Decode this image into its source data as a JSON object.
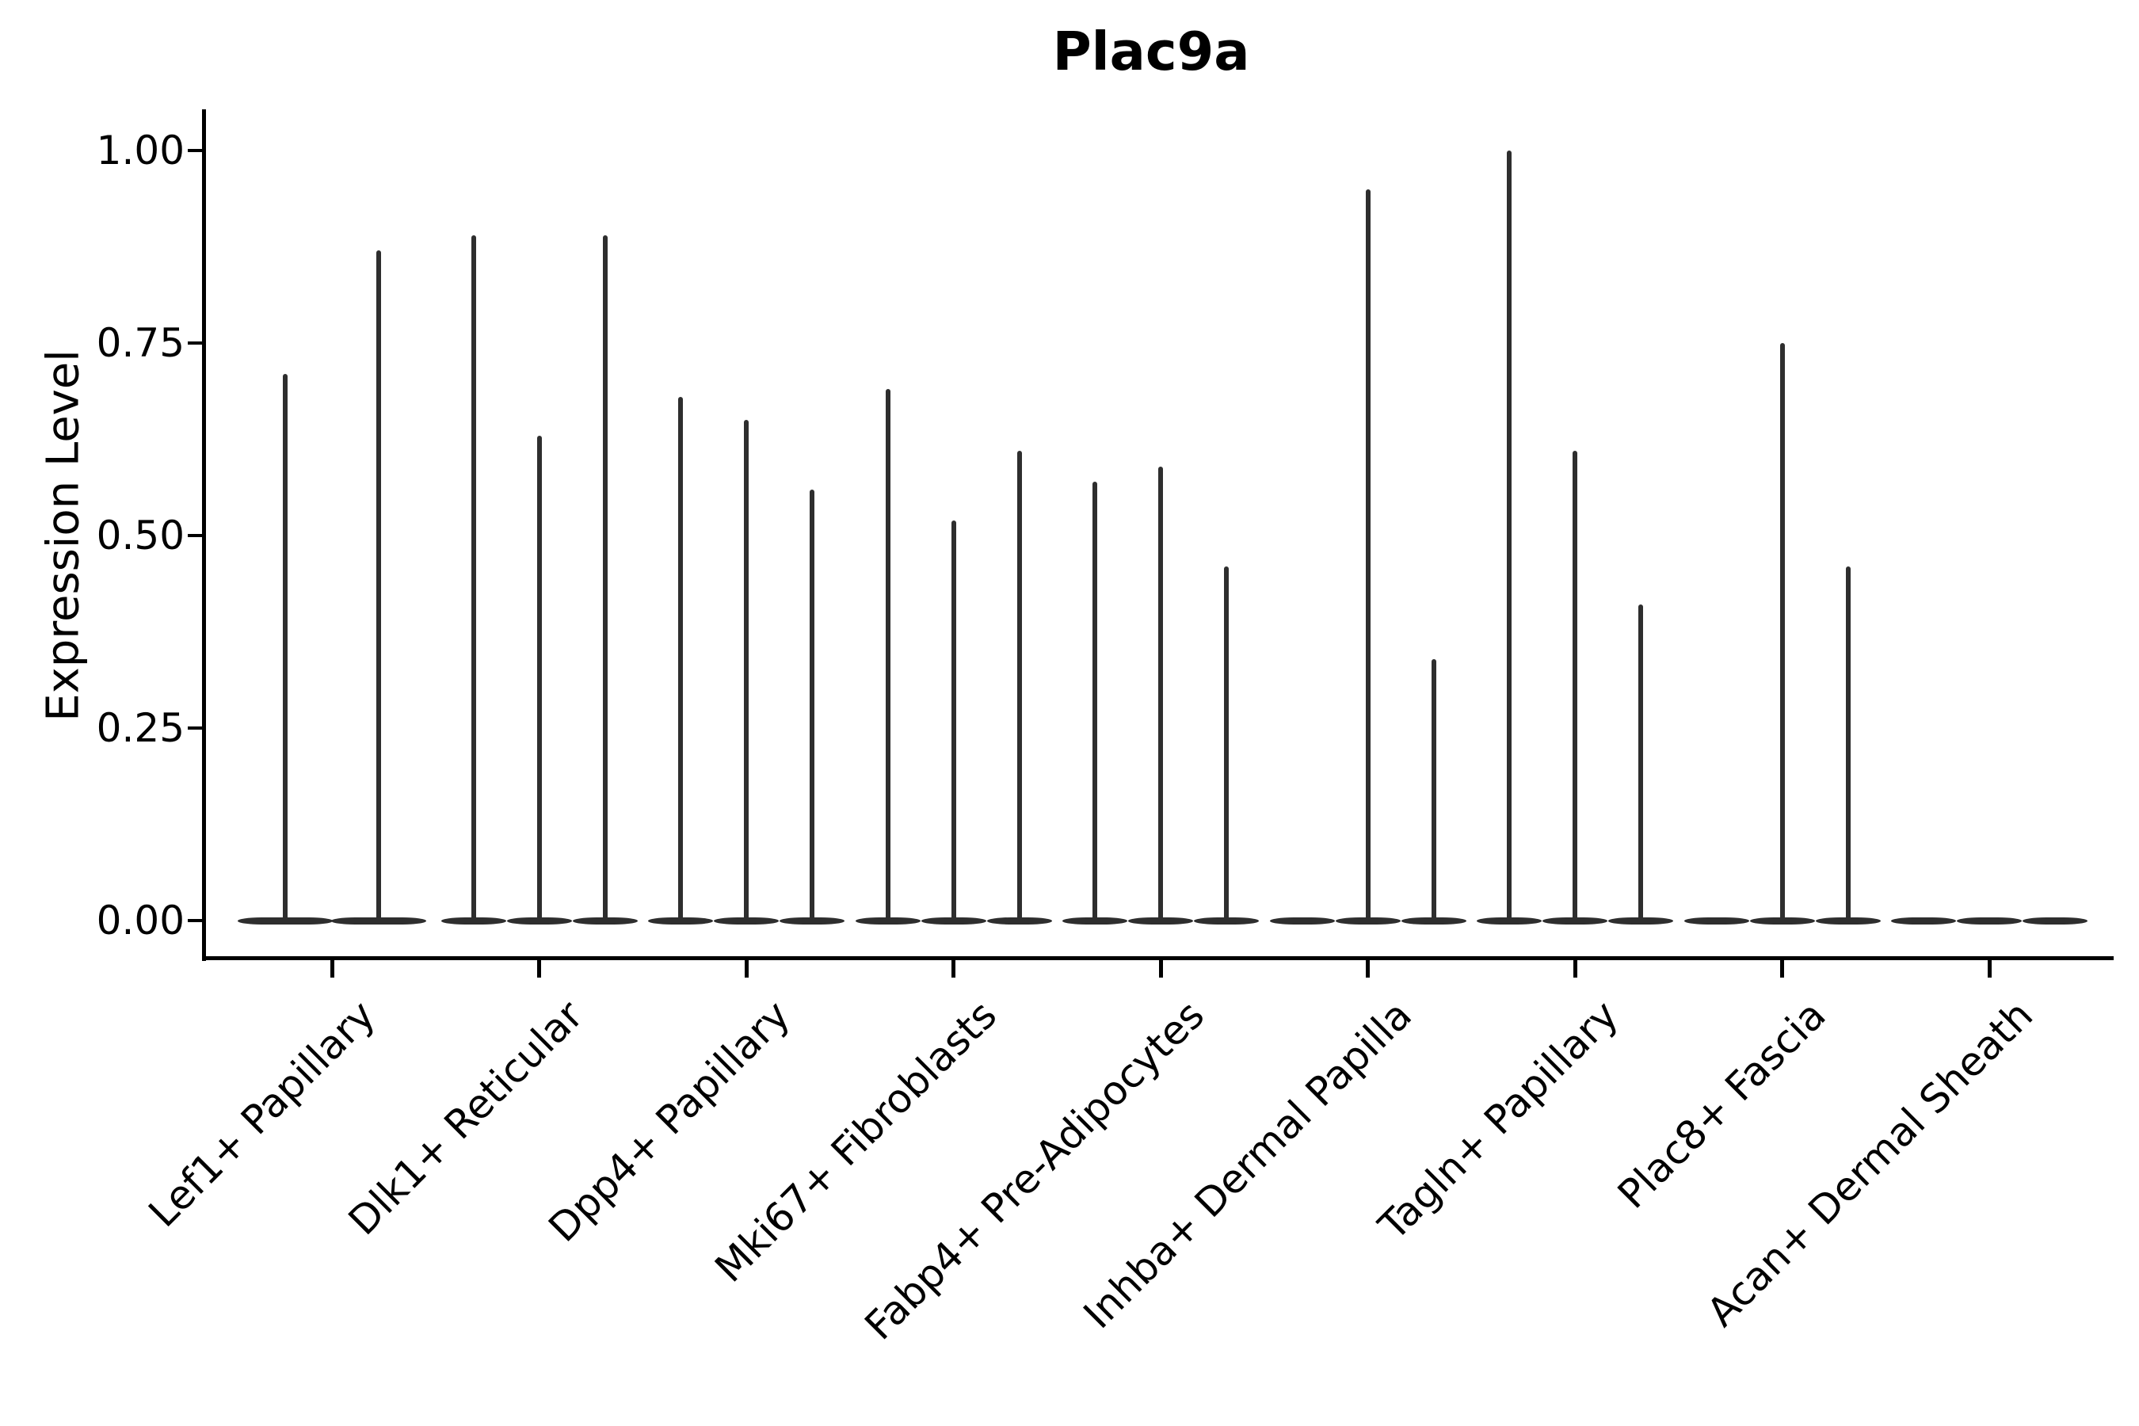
{
  "figure_title": "Plac9a",
  "chart_data": {
    "type": "violin",
    "title": "Plac9a",
    "xlabel": "",
    "ylabel": "Expression Level",
    "ylim": [
      -0.05,
      1.05
    ],
    "ytick_labels": [
      "0.00",
      "0.25",
      "0.50",
      "0.75",
      "1.00"
    ],
    "ytick_values": [
      0.0,
      0.25,
      0.5,
      0.75,
      1.0
    ],
    "grid": false,
    "legend_position": "none",
    "violin_color": "#2e2e2e",
    "axis_color": "#000000",
    "categories": [
      "Lef1+ Papillary",
      "Dlk1+ Reticular",
      "Dpp4+ Papillary",
      "Mki67+ Fibroblasts",
      "Fabp4+ Pre-Adipocytes",
      "Inhba+ Dermal Papilla",
      "Tagln+ Papillary",
      "Plac8+ Fascia",
      "Acan+ Dermal Sheath"
    ],
    "groups": [
      {
        "label": "Lef1+ Papillary",
        "violin_max_values": [
          0.71,
          0.87
        ]
      },
      {
        "label": "Dlk1+ Reticular",
        "violin_max_values": [
          0.89,
          0.63,
          0.89
        ]
      },
      {
        "label": "Dpp4+ Papillary",
        "violin_max_values": [
          0.68,
          0.65,
          0.56
        ]
      },
      {
        "label": "Mki67+ Fibroblasts",
        "violin_max_values": [
          0.69,
          0.52,
          0.61
        ]
      },
      {
        "label": "Fabp4+ Pre-Adipocytes",
        "violin_max_values": [
          0.57,
          0.59,
          0.46
        ]
      },
      {
        "label": "Inhba+ Dermal Papilla",
        "violin_max_values": [
          0.0,
          0.95,
          0.34
        ]
      },
      {
        "label": "Tagln+ Papillary",
        "violin_max_values": [
          1.0,
          0.61,
          0.41
        ]
      },
      {
        "label": "Plac8+ Fascia",
        "violin_max_values": [
          0.0,
          0.75,
          0.46
        ]
      },
      {
        "label": "Acan+ Dermal Sheath",
        "violin_max_values": [
          0.0,
          0.0,
          0.0
        ]
      }
    ],
    "description_note_not_rendered": ""
  }
}
